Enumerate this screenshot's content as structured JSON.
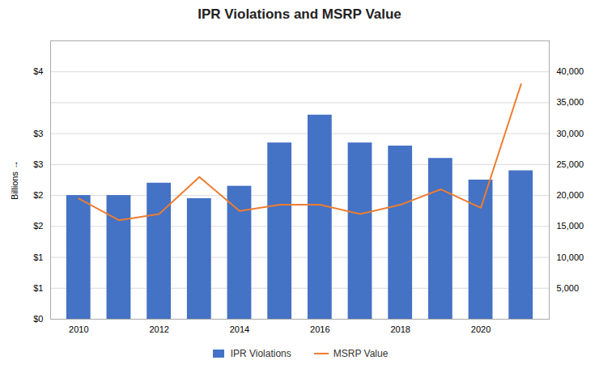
{
  "chart_data": {
    "type": "bar",
    "title": "IPR Violations and MSRP Value",
    "x": [
      2010,
      2011,
      2012,
      2013,
      2014,
      2015,
      2016,
      2017,
      2018,
      2019,
      2020,
      2021
    ],
    "xlim": [
      2009.3,
      2021.7
    ],
    "xticks": [
      2010,
      2012,
      2014,
      2016,
      2018,
      2020
    ],
    "ylabel": "Billions",
    "ylim": [
      0,
      4.5
    ],
    "yticks": [
      {
        "value": 0,
        "label": "$0"
      },
      {
        "value": 0.5,
        "label": "$1"
      },
      {
        "value": 1.0,
        "label": "$1"
      },
      {
        "value": 1.5,
        "label": "$2"
      },
      {
        "value": 2.0,
        "label": "$2"
      },
      {
        "value": 2.5,
        "label": "$3"
      },
      {
        "value": 3.0,
        "label": "$3"
      },
      {
        "value": 3.5,
        "label": ""
      },
      {
        "value": 4.0,
        "label": "$4"
      }
    ],
    "y2lim": [
      0,
      45000
    ],
    "y2ticks": [
      {
        "value": 5000,
        "label": "5,000"
      },
      {
        "value": 10000,
        "label": "10,000"
      },
      {
        "value": 15000,
        "label": "15,000"
      },
      {
        "value": 20000,
        "label": "20,000"
      },
      {
        "value": 25000,
        "label": "25,000"
      },
      {
        "value": 30000,
        "label": "30,000"
      },
      {
        "value": 35000,
        "label": "35,000"
      },
      {
        "value": 40000,
        "label": "40,000"
      }
    ],
    "grid": true,
    "legend": "bottom",
    "series": [
      {
        "name": "IPR Violations",
        "type": "bar",
        "color": "#4472C4",
        "values": [
          2.0,
          2.0,
          2.2,
          1.95,
          2.15,
          2.85,
          3.3,
          2.85,
          2.8,
          2.6,
          2.25,
          2.4
        ]
      },
      {
        "name": "MSRP Value",
        "type": "line",
        "color": "#ED7D31",
        "axis": "y2",
        "values": [
          19500,
          16000,
          17000,
          23000,
          17500,
          18500,
          18500,
          17000,
          18500,
          21000,
          18000,
          38000
        ]
      }
    ]
  }
}
